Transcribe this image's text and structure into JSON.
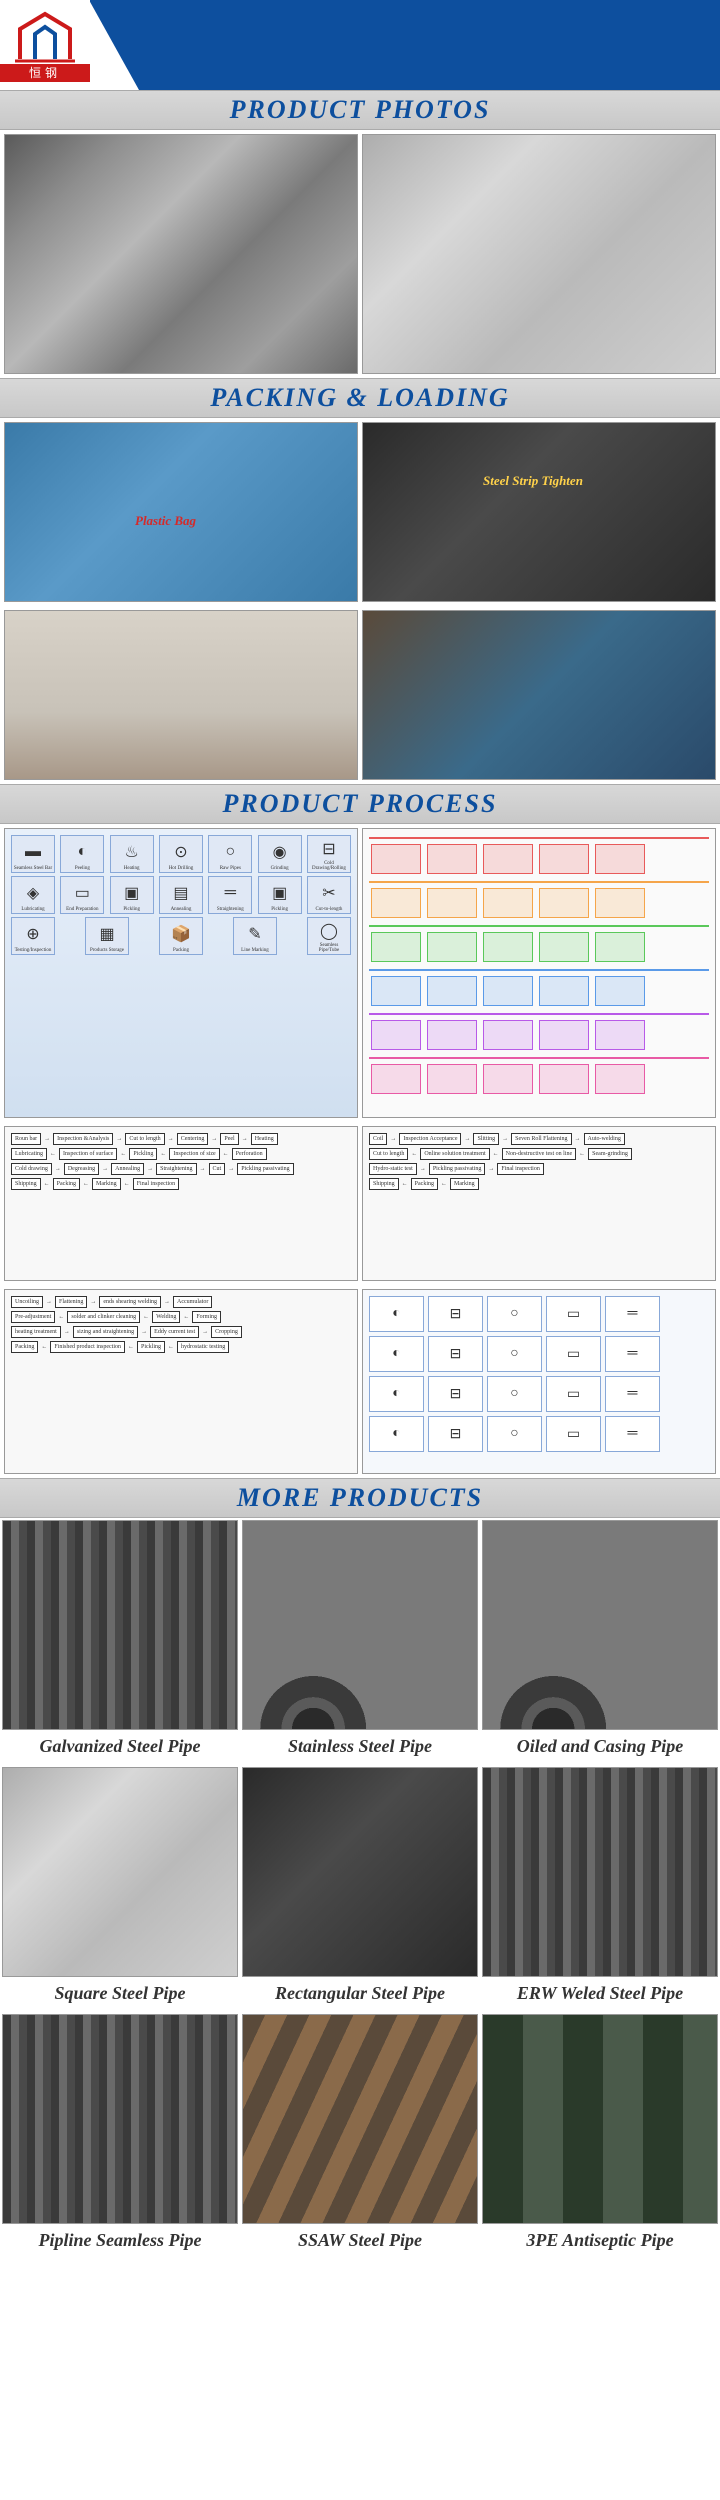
{
  "header": {
    "logo_text": "恒钢",
    "brand_color": "#0d4f9e",
    "logo_red": "#cc1a1a"
  },
  "sections": {
    "photos": {
      "title": "PRODUCT PHOTOS"
    },
    "packing": {
      "title": "PACKING & LOADING",
      "label_plastic": "Plastic Bag",
      "label_strip": "Steel Strip Tighten"
    },
    "process": {
      "title": "PRODUCT PROCESS"
    },
    "more": {
      "title": "MORE PRODUCTS"
    }
  },
  "process_diagram_1": {
    "background": "#e8f0fa",
    "steps": [
      {
        "label": "Seamless Steel Bar",
        "icon": "▬"
      },
      {
        "label": "Peeling",
        "icon": "◐"
      },
      {
        "label": "Heating",
        "icon": "♨"
      },
      {
        "label": "Hot Drilling",
        "icon": "⊙"
      },
      {
        "label": "Raw Pipes",
        "icon": "○"
      },
      {
        "label": "Grinding",
        "icon": "◉"
      },
      {
        "label": "Cold Drawing/Rolling",
        "icon": "⊟"
      },
      {
        "label": "Lubricating",
        "icon": "◈"
      },
      {
        "label": "End Preparation",
        "icon": "▭"
      },
      {
        "label": "Pickling",
        "icon": "▣"
      },
      {
        "label": "Annealing",
        "icon": "▤"
      },
      {
        "label": "Straightening",
        "icon": "═"
      },
      {
        "label": "Pickling",
        "icon": "▣"
      },
      {
        "label": "Cut-to-length",
        "icon": "✂"
      },
      {
        "label": "Testing/Inspection",
        "icon": "⊕"
      },
      {
        "label": "Products Storage",
        "icon": "▦"
      },
      {
        "label": "Packing",
        "icon": "📦"
      },
      {
        "label": "Line Marking",
        "icon": "✎"
      },
      {
        "label": "Seamless Pipe/Tube",
        "icon": "◯"
      }
    ]
  },
  "process_flow_1": [
    [
      "Roun bar",
      "Inspection &Analysis",
      "Cut to length",
      "Centering",
      "Peel",
      "Heating"
    ],
    [
      "Lubricating",
      "Inspection of surface",
      "Pickling",
      "Inspection of size",
      "Perforation"
    ],
    [
      "Cold drawing",
      "Degreasing",
      "Annealing",
      "Straightening",
      "Cut",
      "Pickling passivating"
    ],
    [
      "Shipping",
      "Packing",
      "Marking",
      "Final inspection"
    ]
  ],
  "process_flow_2": [
    [
      "Uncoiling",
      "Flattening",
      "ends shearing welding",
      "Accumulator"
    ],
    [
      "Pre-adjustment",
      "solder and clinker cleaning",
      "Welding",
      "Forming"
    ],
    [
      "heating treatment",
      "sizing and straightening",
      "Eddy current test",
      "Cropping"
    ],
    [
      "Packing",
      "Finished product inspection",
      "Pickling",
      "hydrostatic testing"
    ]
  ],
  "process_flow_3": [
    [
      "Coil",
      "Inspection Acceptance",
      "Slitting",
      "Seven Roll Flattening",
      "Auto-welding"
    ],
    [
      "Cut to length",
      "Online solution treatment",
      "Non-destructive test on line",
      "Seam-grinding"
    ],
    [
      "Hydro-static test",
      "Pickling passivating",
      "Final inspection"
    ],
    [
      "Shipping",
      "Packing",
      "Marking"
    ]
  ],
  "products": [
    {
      "name": "Galvanized Steel Pipe",
      "style": "pipe-round",
      "bg": "#9aa8b8"
    },
    {
      "name": "Stainless Steel Pipe",
      "style": "pipe-ends",
      "bg": "#8a8a8a"
    },
    {
      "name": "Oiled and Casing Pipe",
      "style": "pipe-ends",
      "bg": "#3a4a3a"
    },
    {
      "name": "Square Steel Pipe",
      "style": "steel-light",
      "bg": "#b8b8b8"
    },
    {
      "name": "Rectangular Steel Pipe",
      "style": "steel-dark",
      "bg": "#2a2a2a"
    },
    {
      "name": "ERW Weled Steel Pipe",
      "style": "pipe-round",
      "bg": "#4a4a4a"
    },
    {
      "name": "Pipline Seamless Pipe",
      "style": "pipe-round",
      "bg": "#3a3a3a"
    },
    {
      "name": "SSAW Steel Pipe",
      "style": "pipe-spiral",
      "bg": "#6a5a4a"
    },
    {
      "name": "3PE Antiseptic Pipe",
      "style": "pipe-3pe",
      "bg": "#3a4a3a"
    }
  ]
}
